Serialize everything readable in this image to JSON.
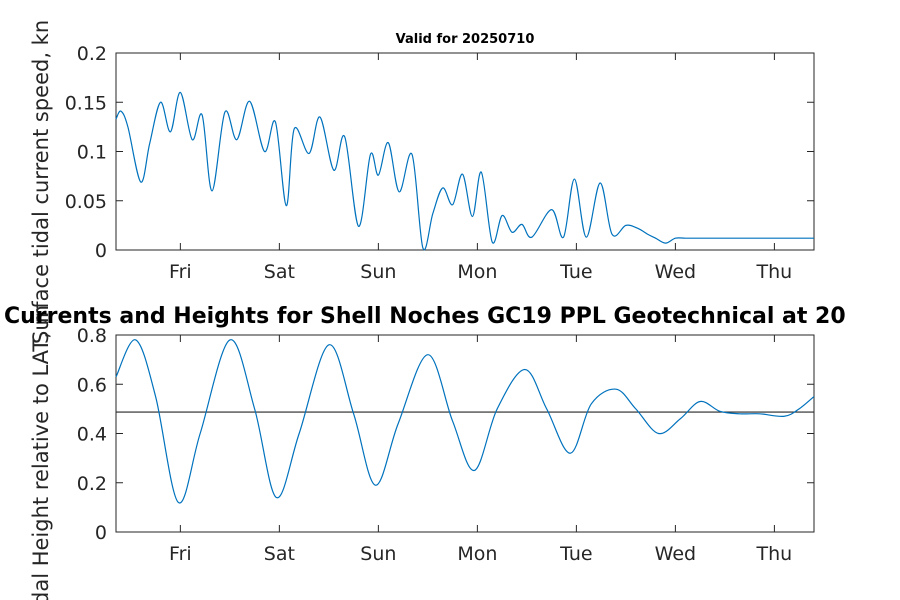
{
  "chart_data": [
    {
      "type": "line",
      "title": "Valid for 20250710",
      "ylabel": "Surface tidal current speed, kn",
      "xlabel": "",
      "categories": [
        "Fri",
        "Sat",
        "Sun",
        "Mon",
        "Tue",
        "Wed",
        "Thu"
      ],
      "category_day_index": [
        1,
        2,
        3,
        4,
        5,
        6,
        7
      ],
      "xlim": [
        0.35,
        7.4
      ],
      "ylim": [
        0,
        0.2
      ],
      "yticks": [
        "0",
        "0.05",
        "0.1",
        "0.15",
        "0.2"
      ],
      "ytick_values": [
        0,
        0.05,
        0.1,
        0.15,
        0.2
      ],
      "series": [
        {
          "color": "#0072BD",
          "x": [
            0.35,
            0.4,
            0.47,
            0.6,
            0.69,
            0.8,
            0.9,
            1.0,
            1.12,
            1.22,
            1.32,
            1.45,
            1.57,
            1.7,
            1.85,
            1.96,
            2.07,
            2.15,
            2.3,
            2.41,
            2.55,
            2.66,
            2.8,
            2.92,
            3.0,
            3.1,
            3.21,
            3.34,
            3.45,
            3.55,
            3.65,
            3.75,
            3.85,
            3.95,
            4.04,
            4.15,
            4.25,
            4.35,
            4.45,
            4.55,
            4.75,
            4.87,
            4.98,
            5.1,
            5.24,
            5.36,
            5.5,
            5.62,
            5.72,
            5.8,
            5.9,
            6.0,
            6.1,
            6.2,
            6.3,
            6.4,
            6.5,
            6.62,
            6.75,
            6.9,
            7.02,
            7.2,
            7.4
          ],
          "y": [
            0.133,
            0.141,
            0.125,
            0.069,
            0.108,
            0.15,
            0.12,
            0.16,
            0.112,
            0.137,
            0.06,
            0.14,
            0.112,
            0.151,
            0.1,
            0.13,
            0.045,
            0.123,
            0.098,
            0.135,
            0.081,
            0.115,
            0.024,
            0.097,
            0.076,
            0.109,
            0.059,
            0.097,
            0.002,
            0.037,
            0.063,
            0.046,
            0.077,
            0.034,
            0.079,
            0.008,
            0.035,
            0.018,
            0.026,
            0.013,
            0.041,
            0.013,
            0.072,
            0.013,
            0.068,
            0.016,
            0.025,
            0.022,
            0.016,
            0.012,
            0.007,
            0.012,
            0.012,
            0.012,
            0.012,
            0.012,
            0.012,
            0.012,
            0.012,
            0.012,
            0.012,
            0.012,
            0.012
          ]
        }
      ]
    },
    {
      "type": "line",
      "title": "Currents and Heights for Shell Noches   GC19 PPL  Geotechnical at 20",
      "ylabel": "Tidal Height relative to LAT, m",
      "xlabel": "",
      "categories": [
        "Fri",
        "Sat",
        "Sun",
        "Mon",
        "Tue",
        "Wed",
        "Thu"
      ],
      "category_day_index": [
        1,
        2,
        3,
        4,
        5,
        6,
        7
      ],
      "xlim": [
        0.35,
        7.4
      ],
      "ylim": [
        0,
        0.8
      ],
      "yticks": [
        "0",
        "0.2",
        "0.4",
        "0.6",
        "0.8"
      ],
      "ytick_values": [
        0,
        0.2,
        0.4,
        0.6,
        0.8
      ],
      "reference_line": 0.487,
      "series": [
        {
          "color": "#0072BD",
          "x": [
            0.35,
            0.55,
            0.75,
            0.98,
            1.2,
            1.5,
            1.75,
            1.97,
            2.2,
            2.5,
            2.75,
            2.97,
            3.2,
            3.5,
            3.75,
            3.97,
            4.2,
            4.48,
            4.7,
            4.94,
            5.15,
            5.4,
            5.6,
            5.83,
            6.05,
            6.25,
            6.45,
            6.65,
            6.85,
            7.1,
            7.25,
            7.4
          ],
          "y": [
            0.63,
            0.78,
            0.55,
            0.12,
            0.4,
            0.78,
            0.5,
            0.14,
            0.4,
            0.76,
            0.48,
            0.19,
            0.44,
            0.72,
            0.45,
            0.25,
            0.5,
            0.66,
            0.5,
            0.32,
            0.52,
            0.58,
            0.5,
            0.4,
            0.46,
            0.53,
            0.49,
            0.48,
            0.48,
            0.47,
            0.5,
            0.55
          ]
        }
      ]
    }
  ]
}
